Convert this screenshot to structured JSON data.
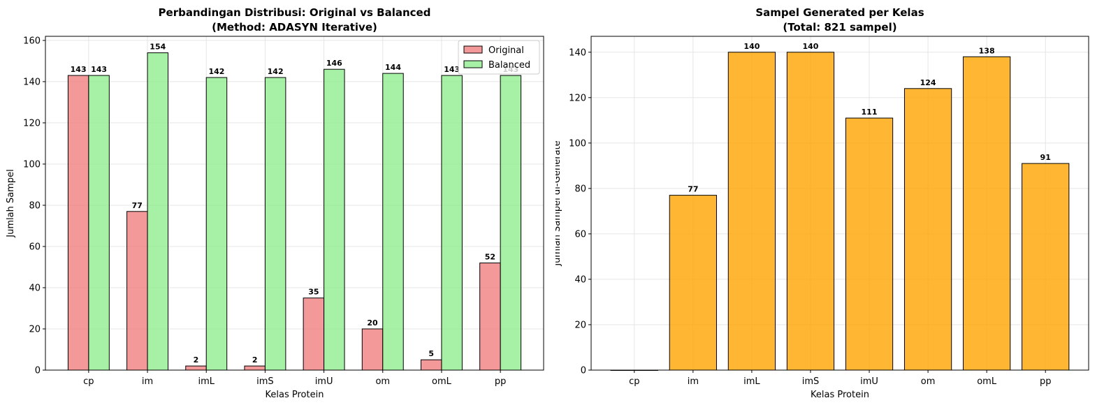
{
  "chart_data": [
    {
      "type": "bar",
      "title_line1": "Perbandingan Distribusi: Original vs Balanced",
      "title_line2": "(Method: ADASYN Iterative)",
      "xlabel": "Kelas Protein",
      "ylabel": "Jumlah Sampel",
      "categories": [
        "cp",
        "im",
        "imL",
        "imS",
        "imU",
        "om",
        "omL",
        "pp"
      ],
      "series": [
        {
          "name": "Original",
          "values": [
            143,
            77,
            2,
            2,
            35,
            20,
            5,
            52
          ],
          "color": "#f08080"
        },
        {
          "name": "Balanced",
          "values": [
            143,
            154,
            142,
            142,
            146,
            144,
            143,
            143
          ],
          "color": "#90ee90"
        }
      ],
      "ylim": [
        0,
        162
      ],
      "yticks": [
        0,
        20,
        40,
        60,
        80,
        100,
        120,
        140,
        160
      ],
      "grid": true,
      "legend": "top-right"
    },
    {
      "type": "bar",
      "title_line1": "Sampel Generated per Kelas",
      "title_line2": "(Total: 821 sampel)",
      "xlabel": "Kelas Protein",
      "ylabel": "Jumlah Sampel di-Generate",
      "categories": [
        "cp",
        "im",
        "imL",
        "imS",
        "imU",
        "om",
        "omL",
        "pp"
      ],
      "values": [
        0,
        77,
        140,
        140,
        111,
        124,
        138,
        91
      ],
      "bar_labels": [
        "",
        "77",
        "140",
        "140",
        "111",
        "124",
        "138",
        "91"
      ],
      "color": "#ffa500",
      "ylim": [
        0,
        147
      ],
      "yticks": [
        0,
        20,
        40,
        60,
        80,
        100,
        120,
        140
      ],
      "grid": true
    }
  ]
}
